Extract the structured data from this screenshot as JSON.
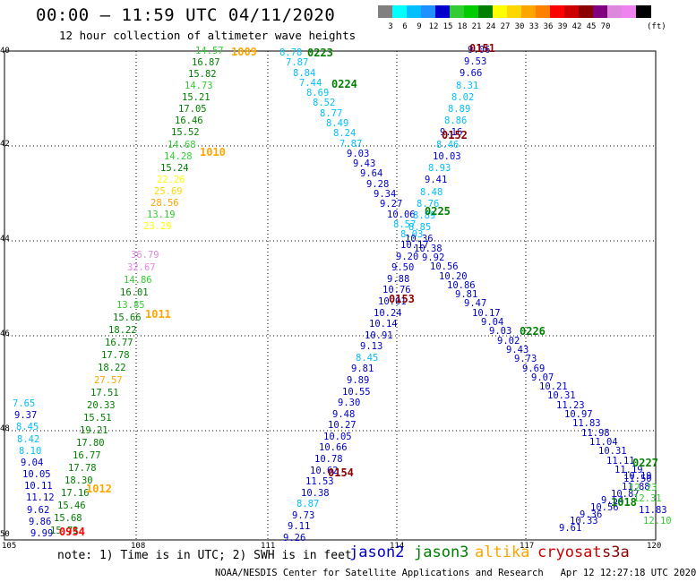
{
  "header": {
    "title": "00:00 – 11:59 UTC 04/11/2020",
    "subtitle": "12 hour collection of altimeter wave heights"
  },
  "scale": {
    "unit": "(ft)",
    "colors": [
      "#808080",
      "#00ffff",
      "#00bfff",
      "#1e90ff",
      "#0000cd",
      "#32cd32",
      "#00cc00",
      "#008000",
      "#ffff00",
      "#ffd700",
      "#ffa500",
      "#ff7f00",
      "#ff0000",
      "#cc0000",
      "#8b0000",
      "#800080",
      "#dd88dd",
      "#ee82ee",
      "#000000"
    ],
    "labels": [
      "3",
      "6",
      "9",
      "12",
      "15",
      "18",
      "21",
      "24",
      "27",
      "30",
      "33",
      "36",
      "39",
      "42",
      "45",
      "70"
    ]
  },
  "axes": {
    "lat_labels": [
      "40",
      "42",
      "44",
      "46",
      "48",
      "50"
    ],
    "lon_labels": [
      "105",
      "108",
      "111",
      "114",
      "117",
      "120"
    ]
  },
  "footer": {
    "note": "note: 1) Time is in UTC; 2) SWH is in feet",
    "legend": [
      {
        "name": "jason2",
        "color": "#0000cd"
      },
      {
        "name": "jason3",
        "color": "#008000"
      },
      {
        "name": "altika",
        "color": "#ffa500"
      },
      {
        "name": "cryosat",
        "color": "#cc0000"
      },
      {
        "name": "s3a",
        "color": "#8b0000"
      }
    ],
    "credit": "NOAA/NESDIS Center for Satellite Applications and Research   Apr 12 12:27:18 UTC 2020"
  },
  "tracks": [
    {
      "id": "track-altika-1009",
      "points": [
        [
          "14.57",
          "#32cd32"
        ],
        [
          "16.87",
          "#008000"
        ],
        [
          "15.82",
          "#008000"
        ],
        [
          "14.73",
          "#32cd32"
        ],
        [
          "15.21",
          "#008000"
        ],
        [
          "17.05",
          "#008000"
        ],
        [
          "16.46",
          "#008000"
        ],
        [
          "15.52",
          "#008000"
        ],
        [
          "14.68",
          "#32cd32"
        ],
        [
          "14.28",
          "#32cd32"
        ],
        [
          "15.24",
          "#008000"
        ],
        [
          "22.26",
          "#ffff00"
        ],
        [
          "25.69",
          "#ffd700"
        ],
        [
          "28.56",
          "#ffa500"
        ],
        [
          "13.19",
          "#32cd32"
        ],
        [
          "23.29",
          "#ffff00"
        ]
      ]
    },
    {
      "id": "track-altika-1011",
      "points": [
        [
          "36.79",
          "#dd88dd"
        ],
        [
          "32.67",
          "#ee82ee"
        ],
        [
          "14.86",
          "#32cd32"
        ],
        [
          "16.01",
          "#008000"
        ],
        [
          "13.85",
          "#32cd32"
        ],
        [
          "15.66",
          "#008000"
        ],
        [
          "18.22",
          "#008000"
        ],
        [
          "16.77",
          "#008000"
        ],
        [
          "17.78",
          "#008000"
        ],
        [
          "18.22",
          "#008000"
        ],
        [
          "27.57",
          "#ffa500"
        ],
        [
          "17.51",
          "#008000"
        ],
        [
          "20.33",
          "#008000"
        ],
        [
          "15.51",
          "#008000"
        ],
        [
          "19.21",
          "#008000"
        ],
        [
          "17.80",
          "#008000"
        ],
        [
          "16.77",
          "#008000"
        ],
        [
          "17.78",
          "#008000"
        ],
        [
          "18.30",
          "#008000"
        ],
        [
          "17.16",
          "#008000"
        ],
        [
          "15.46",
          "#008000"
        ],
        [
          "15.68",
          "#008000"
        ],
        [
          "15.73",
          "#008000"
        ]
      ]
    },
    {
      "id": "track-jason-edge",
      "points": [
        [
          "7.65",
          "#00bfff"
        ],
        [
          "9.37",
          "#0000cd"
        ],
        [
          "8.45",
          "#00bfff"
        ],
        [
          "8.42",
          "#00bfff"
        ],
        [
          "8.10",
          "#00bfff"
        ],
        [
          "9.04",
          "#0000cd"
        ],
        [
          "10.05",
          "#0000cd"
        ],
        [
          "10.11",
          "#0000cd"
        ],
        [
          "11.12",
          "#0000cd"
        ],
        [
          "9.62",
          "#0000cd"
        ],
        [
          "9.86",
          "#0000cd"
        ],
        [
          "9.99",
          "#0000cd"
        ]
      ]
    },
    {
      "id": "track-0223",
      "points": [
        [
          "8.78",
          "#00bfff"
        ],
        [
          "7.87",
          "#00bfff"
        ],
        [
          "8.84",
          "#00bfff"
        ],
        [
          "7.44",
          "#00bfff"
        ],
        [
          "8.69",
          "#00bfff"
        ],
        [
          "8.52",
          "#00bfff"
        ],
        [
          "8.77",
          "#00bfff"
        ],
        [
          "8.49",
          "#00bfff"
        ],
        [
          "8.24",
          "#00bfff"
        ],
        [
          "7.87",
          "#00bfff"
        ],
        [
          "9.03",
          "#0000cd"
        ],
        [
          "9.43",
          "#0000cd"
        ],
        [
          "9.64",
          "#0000cd"
        ],
        [
          "9.28",
          "#0000cd"
        ],
        [
          "9.34",
          "#0000cd"
        ],
        [
          "9.27",
          "#0000cd"
        ],
        [
          "10.06",
          "#0000cd"
        ],
        [
          "8.57",
          "#00bfff"
        ],
        [
          "8.03",
          "#00bfff"
        ],
        [
          "10.17",
          "#0000cd"
        ],
        [
          "9.20",
          "#0000cd"
        ],
        [
          "9.50",
          "#0000cd"
        ],
        [
          "9.88",
          "#0000cd"
        ],
        [
          "10.76",
          "#0000cd"
        ],
        [
          "10.01",
          "#0000cd"
        ],
        [
          "10.24",
          "#0000cd"
        ],
        [
          "10.14",
          "#0000cd"
        ],
        [
          "10.91",
          "#0000cd"
        ],
        [
          "9.13",
          "#0000cd"
        ],
        [
          "8.45",
          "#00bfff"
        ],
        [
          "9.81",
          "#0000cd"
        ],
        [
          "9.89",
          "#0000cd"
        ],
        [
          "10.55",
          "#0000cd"
        ],
        [
          "9.30",
          "#0000cd"
        ],
        [
          "9.48",
          "#0000cd"
        ],
        [
          "10.27",
          "#0000cd"
        ],
        [
          "10.05",
          "#0000cd"
        ],
        [
          "10.66",
          "#0000cd"
        ],
        [
          "10.78",
          "#0000cd"
        ],
        [
          "10.62",
          "#0000cd"
        ],
        [
          "11.53",
          "#0000cd"
        ],
        [
          "10.38",
          "#0000cd"
        ],
        [
          "8.87",
          "#00bfff"
        ],
        [
          "9.73",
          "#0000cd"
        ],
        [
          "9.11",
          "#0000cd"
        ],
        [
          "9.26",
          "#0000cd"
        ]
      ]
    },
    {
      "id": "track-0151",
      "points": [
        [
          "9.06",
          "#0000cd"
        ],
        [
          "9.53",
          "#0000cd"
        ],
        [
          "9.66",
          "#0000cd"
        ],
        [
          "8.31",
          "#00bfff"
        ],
        [
          "8.02",
          "#00bfff"
        ],
        [
          "8.89",
          "#00bfff"
        ],
        [
          "8.86",
          "#00bfff"
        ],
        [
          "9.16",
          "#0000cd"
        ],
        [
          "8.46",
          "#00bfff"
        ],
        [
          "10.03",
          "#0000cd"
        ],
        [
          "8.93",
          "#00bfff"
        ],
        [
          "9.41",
          "#0000cd"
        ],
        [
          "8.48",
          "#00bfff"
        ],
        [
          "8.76",
          "#00bfff"
        ],
        [
          "8.89",
          "#00bfff"
        ],
        [
          "8.85",
          "#00bfff"
        ],
        [
          "10.36",
          "#0000cd"
        ],
        [
          "10.38",
          "#0000cd"
        ],
        [
          "9.92",
          "#0000cd"
        ],
        [
          "10.56",
          "#0000cd"
        ],
        [
          "10.20",
          "#0000cd"
        ],
        [
          "10.86",
          "#0000cd"
        ],
        [
          "9.81",
          "#0000cd"
        ],
        [
          "9.47",
          "#0000cd"
        ],
        [
          "10.17",
          "#0000cd"
        ],
        [
          "9.04",
          "#0000cd"
        ],
        [
          "9.03",
          "#0000cd"
        ],
        [
          "9.02",
          "#0000cd"
        ],
        [
          "9.43",
          "#0000cd"
        ],
        [
          "9.73",
          "#0000cd"
        ],
        [
          "9.69",
          "#0000cd"
        ],
        [
          "9.07",
          "#0000cd"
        ],
        [
          "10.21",
          "#0000cd"
        ],
        [
          "10.31",
          "#0000cd"
        ],
        [
          "11.23",
          "#0000cd"
        ],
        [
          "10.97",
          "#0000cd"
        ],
        [
          "11.83",
          "#0000cd"
        ],
        [
          "11.98",
          "#0000cd"
        ],
        [
          "11.04",
          "#0000cd"
        ],
        [
          "10.31",
          "#0000cd"
        ],
        [
          "11.11",
          "#0000cd"
        ],
        [
          "11.19",
          "#0000cd"
        ],
        [
          "11.50",
          "#0000cd"
        ],
        [
          "11.88",
          "#0000cd"
        ],
        [
          "10.87",
          "#0000cd"
        ],
        [
          "9.54",
          "#0000cd"
        ],
        [
          "10.56",
          "#0000cd"
        ],
        [
          "9.36",
          "#0000cd"
        ],
        [
          "10.33",
          "#0000cd"
        ],
        [
          "9.61",
          "#0000cd"
        ]
      ]
    },
    {
      "id": "track-0227",
      "points": [
        [
          "10.19",
          "#0000cd"
        ],
        [
          "12.23",
          "#32cd32"
        ],
        [
          "12.31",
          "#32cd32"
        ],
        [
          "11.83",
          "#0000cd"
        ],
        [
          "12.10",
          "#32cd32"
        ]
      ]
    }
  ],
  "time_labels": [
    {
      "text": "1009",
      "color": "#ffa500"
    },
    {
      "text": "1010",
      "color": "#ffa500"
    },
    {
      "text": "1011",
      "color": "#ffa500"
    },
    {
      "text": "1012",
      "color": "#ffa500"
    },
    {
      "text": "0954",
      "color": "#ff0000"
    },
    {
      "text": "0223",
      "color": "#008000"
    },
    {
      "text": "0224",
      "color": "#008000"
    },
    {
      "text": "0225",
      "color": "#008000"
    },
    {
      "text": "0226",
      "color": "#008000"
    },
    {
      "text": "0227",
      "color": "#008000"
    },
    {
      "text": "1018",
      "color": "#008000"
    },
    {
      "text": "0151",
      "color": "#8b0000"
    },
    {
      "text": "0152",
      "color": "#8b0000"
    },
    {
      "text": "0153",
      "color": "#8b0000"
    },
    {
      "text": "0154",
      "color": "#8b0000"
    }
  ]
}
